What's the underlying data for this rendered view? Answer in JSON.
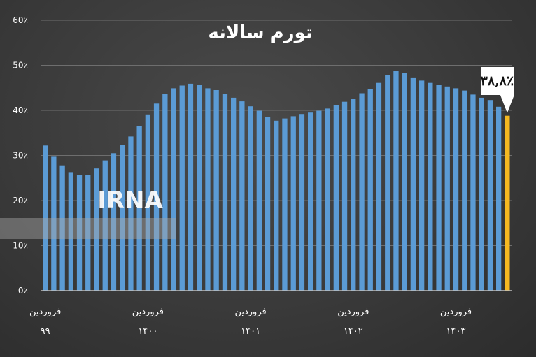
{
  "chart_data": {
    "type": "bar",
    "title": "تورم سالانه",
    "ylim": [
      0,
      60
    ],
    "yticks": [
      "0٪",
      "10٪",
      "20٪",
      "30٪",
      "40٪",
      "50٪",
      "60٪"
    ],
    "grid": true,
    "x_labels": [
      {
        "index": 0,
        "month": "فروردین",
        "year": "۹۹"
      },
      {
        "index": 12,
        "month": "فروردین",
        "year": "۱۴۰۰"
      },
      {
        "index": 24,
        "month": "فروردین",
        "year": "۱۴۰۱"
      },
      {
        "index": 36,
        "month": "فروردین",
        "year": "۱۴۰۲"
      },
      {
        "index": 48,
        "month": "فروردین",
        "year": "۱۴۰۳"
      }
    ],
    "values": [
      32.2,
      29.7,
      27.8,
      26.3,
      25.6,
      25.7,
      27.1,
      28.9,
      30.5,
      32.3,
      34.2,
      36.5,
      39.1,
      41.5,
      43.6,
      44.9,
      45.5,
      45.9,
      45.7,
      44.9,
      44.5,
      43.6,
      42.8,
      42.0,
      40.9,
      39.9,
      38.6,
      37.7,
      38.2,
      38.7,
      39.2,
      39.5,
      39.9,
      40.4,
      41.1,
      41.9,
      42.6,
      43.8,
      44.8,
      46.1,
      47.8,
      48.7,
      48.3,
      47.3,
      46.6,
      46.1,
      45.7,
      45.3,
      44.9,
      44.4,
      43.5,
      42.8,
      42.3,
      40.8,
      38.8
    ],
    "highlight_index": 54,
    "highlight_label": "۳۸,۸٪",
    "colors": {
      "bar": "#5b9bd5",
      "highlight": "#f5b820",
      "callout_bg": "#ffffff",
      "grid": "#6e6e6e",
      "axis": "#bfbfbf"
    }
  },
  "watermark": {
    "text": "IRNA"
  }
}
